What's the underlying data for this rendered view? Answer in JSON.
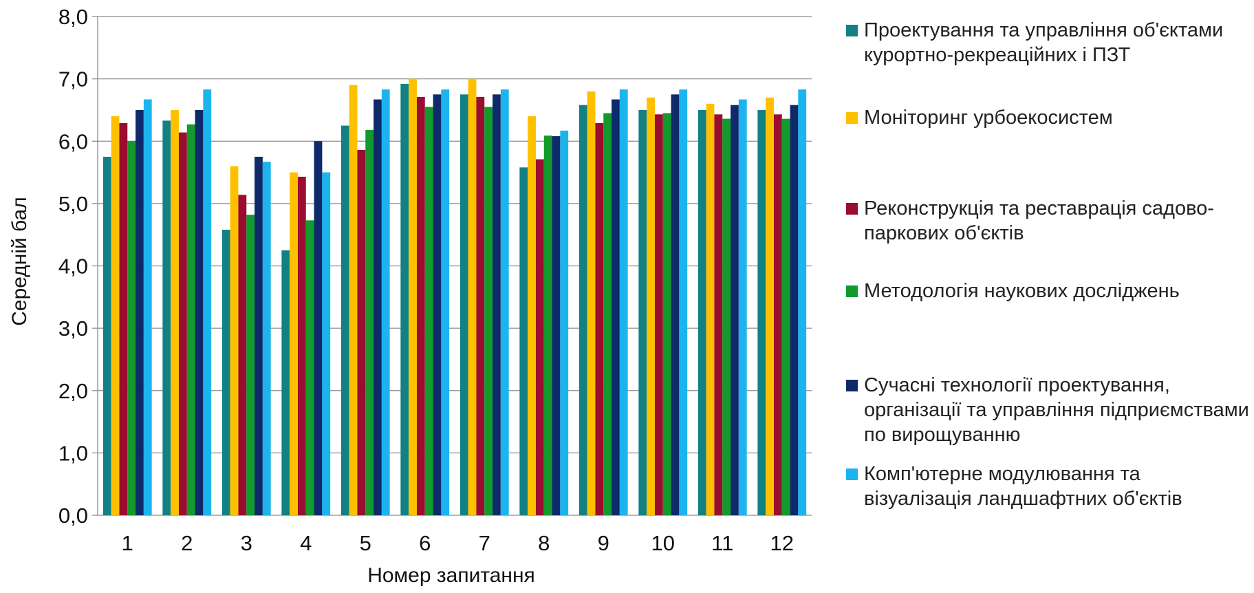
{
  "chart_data": {
    "type": "bar",
    "xlabel": "Номер запитання",
    "ylabel": "Середній бал",
    "ylim": [
      0,
      8
    ],
    "yticks": [
      "0,0",
      "1,0",
      "2,0",
      "3,0",
      "4,0",
      "5,0",
      "6,0",
      "7,0",
      "8,0"
    ],
    "grid": true,
    "legend_position": "right",
    "categories": [
      "1",
      "2",
      "3",
      "4",
      "5",
      "6",
      "7",
      "8",
      "9",
      "10",
      "11",
      "12"
    ],
    "series": [
      {
        "name": "Проектування та управління об'єктами курортно-рекреаційних і ПЗТ",
        "color": "#138184",
        "values": [
          5.75,
          6.33,
          4.58,
          4.25,
          6.25,
          6.92,
          6.75,
          5.58,
          6.58,
          6.5,
          6.5,
          6.5
        ]
      },
      {
        "name": "Моніторинг урбоекосистем",
        "color": "#FFC000",
        "values": [
          6.4,
          6.5,
          5.6,
          5.5,
          6.9,
          7.0,
          7.0,
          6.4,
          6.8,
          6.7,
          6.6,
          6.7
        ]
      },
      {
        "name": "Реконструкція та реставрація садово-паркових об'єктів",
        "color": "#9B0D30",
        "values": [
          6.29,
          6.14,
          5.14,
          5.43,
          5.86,
          6.71,
          6.71,
          5.71,
          6.29,
          6.43,
          6.43,
          6.43
        ]
      },
      {
        "name": "Методологія наукових досліджень",
        "color": "#129A2D",
        "values": [
          6.0,
          6.27,
          4.82,
          4.73,
          6.18,
          6.55,
          6.55,
          6.09,
          6.45,
          6.45,
          6.36,
          6.36
        ]
      },
      {
        "name": "Сучасні технології проектування, організації та управління підприємствами по вирощуванню",
        "color": "#0E2A6B",
        "values": [
          6.5,
          6.5,
          5.75,
          6.0,
          6.67,
          6.75,
          6.75,
          6.08,
          6.67,
          6.75,
          6.58,
          6.58
        ]
      },
      {
        "name": "Комп'ютерне модулювання та візуалізація ландшафтних об'єктів",
        "color": "#1CB4EE",
        "values": [
          6.67,
          6.83,
          5.67,
          5.5,
          6.83,
          6.83,
          6.83,
          6.17,
          6.83,
          6.83,
          6.67,
          6.83
        ]
      }
    ]
  }
}
